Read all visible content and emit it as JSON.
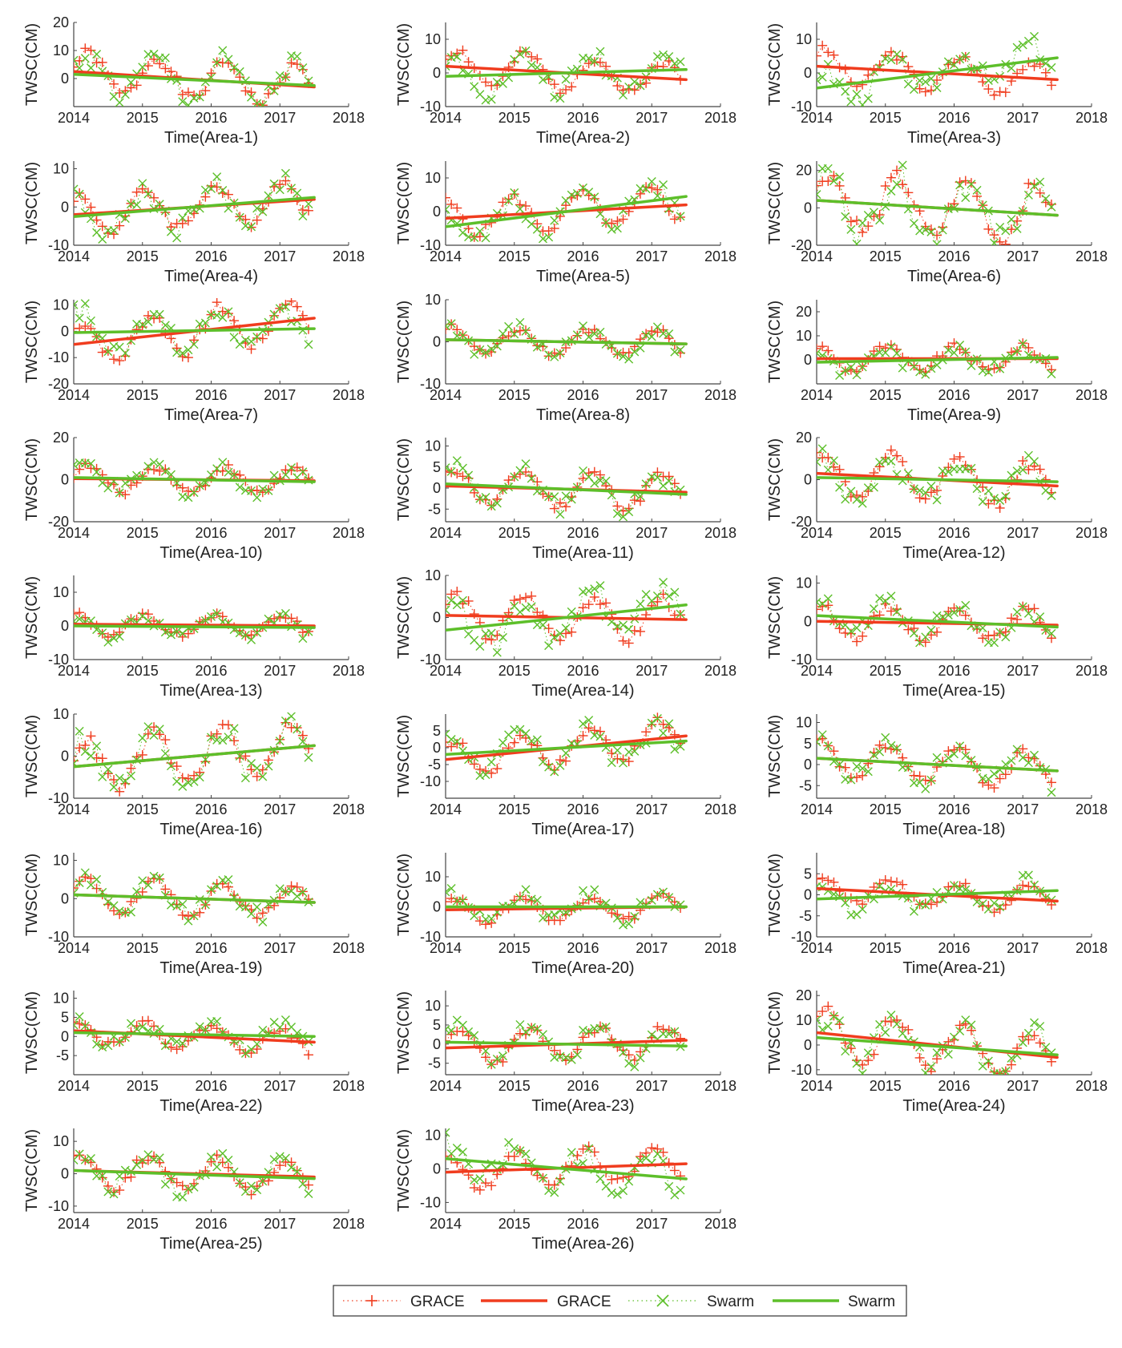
{
  "figure": {
    "ylabel": "TWSC(CM)",
    "xlabel_format": "Time(Area-{n})",
    "x_ticks": [
      2014,
      2015,
      2016,
      2017,
      2018
    ],
    "x_range": [
      2014,
      2018
    ],
    "colors": {
      "grace": "#f03c1e",
      "swarm": "#5dbf2a",
      "axis": "#444444"
    }
  },
  "legend": {
    "entries": [
      {
        "label": "GRACE",
        "series": "grace",
        "style": "markers-dotted"
      },
      {
        "label": "GRACE",
        "series": "grace",
        "style": "trend-line"
      },
      {
        "label": "Swarm",
        "series": "swarm",
        "style": "markers-dotted"
      },
      {
        "label": "Swarm",
        "series": "swarm",
        "style": "trend-line"
      }
    ]
  },
  "chart_data": [
    {
      "type": "line",
      "area": 1,
      "xlabel": "Time(Area-1)",
      "ylabel": "TWSC(CM)",
      "ylim": [
        -10,
        20
      ],
      "yticks": [
        0,
        10,
        20
      ],
      "grace_trend": [
        2.5,
        -3.0
      ],
      "swarm_trend": [
        1.5,
        -2.5
      ],
      "amp": 7,
      "phase": 0.2
    },
    {
      "type": "line",
      "area": 2,
      "xlabel": "Time(Area-2)",
      "ylabel": "TWSC(CM)",
      "ylim": [
        -10,
        15
      ],
      "yticks": [
        -10,
        0,
        10
      ],
      "grace_trend": [
        2.0,
        -2.0
      ],
      "swarm_trend": [
        -1.0,
        1.0
      ],
      "amp": 5,
      "phase": 0.5
    },
    {
      "type": "line",
      "area": 3,
      "xlabel": "Time(Area-3)",
      "ylabel": "TWSC(CM)",
      "ylim": [
        -10,
        15
      ],
      "yticks": [
        -10,
        0,
        10
      ],
      "grace_trend": [
        2.0,
        -2.0
      ],
      "swarm_trend": [
        -4.5,
        4.5
      ],
      "amp": 5,
      "phase": 0.9
    },
    {
      "type": "line",
      "area": 4,
      "xlabel": "Time(Area-4)",
      "ylabel": "TWSC(CM)",
      "ylim": [
        -10,
        12
      ],
      "yticks": [
        -10,
        0,
        10
      ],
      "grace_trend": [
        -2.0,
        2.0
      ],
      "swarm_trend": [
        -2.5,
        2.5
      ],
      "amp": 5,
      "phase": 1.3
    },
    {
      "type": "line",
      "area": 5,
      "xlabel": "Time(Area-5)",
      "ylabel": "TWSC(CM)",
      "ylim": [
        -10,
        15
      ],
      "yticks": [
        -10,
        0,
        10
      ],
      "grace_trend": [
        -2.0,
        2.0
      ],
      "swarm_trend": [
        -4.5,
        4.5
      ],
      "amp": 5,
      "phase": 1.7
    },
    {
      "type": "line",
      "area": 6,
      "xlabel": "Time(Area-6)",
      "ylabel": "TWSC(CM)",
      "ylim": [
        -20,
        25
      ],
      "yticks": [
        -20,
        0,
        20
      ],
      "grace_trend": [
        4.0,
        -4.0
      ],
      "swarm_trend": [
        4.0,
        -4.0
      ],
      "amp": 15,
      "phase": 0.4
    },
    {
      "type": "line",
      "area": 7,
      "xlabel": "Time(Area-7)",
      "ylabel": "TWSC(CM)",
      "ylim": [
        -20,
        12
      ],
      "yticks": [
        -20,
        -10,
        0,
        10
      ],
      "grace_trend": [
        -5.0,
        5.0
      ],
      "swarm_trend": [
        -0.5,
        1.0
      ],
      "amp": 8,
      "phase": 0.8
    },
    {
      "type": "line",
      "area": 8,
      "xlabel": "Time(Area-8)",
      "ylabel": "TWSC(CM)",
      "ylim": [
        -10,
        10
      ],
      "yticks": [
        -10,
        0,
        10
      ],
      "grace_trend": [
        0.5,
        -0.5
      ],
      "swarm_trend": [
        0.5,
        -0.5
      ],
      "amp": 3,
      "phase": 1.1
    },
    {
      "type": "line",
      "area": 9,
      "xlabel": "Time(Area-9)",
      "ylabel": "TWSC(CM)",
      "ylim": [
        -10,
        25
      ],
      "yticks": [
        0,
        10,
        20
      ],
      "grace_trend": [
        0.5,
        0.5
      ],
      "swarm_trend": [
        -1.0,
        1.0
      ],
      "amp": 5,
      "phase": 1.5
    },
    {
      "type": "line",
      "area": 10,
      "xlabel": "Time(Area-10)",
      "ylabel": "TWSC(CM)",
      "ylim": [
        -20,
        20
      ],
      "yticks": [
        -20,
        0,
        20
      ],
      "grace_trend": [
        0.5,
        -0.5
      ],
      "swarm_trend": [
        1.0,
        -1.0
      ],
      "amp": 6,
      "phase": 0.3
    },
    {
      "type": "line",
      "area": 11,
      "xlabel": "Time(Area-11)",
      "ylabel": "TWSC(CM)",
      "ylim": [
        -8,
        12
      ],
      "yticks": [
        -5,
        0,
        5,
        10
      ],
      "grace_trend": [
        0.5,
        -1.0
      ],
      "swarm_trend": [
        1.0,
        -1.5
      ],
      "amp": 4,
      "phase": 0.7
    },
    {
      "type": "line",
      "area": 12,
      "xlabel": "Time(Area-12)",
      "ylabel": "TWSC(CM)",
      "ylim": [
        -20,
        20
      ],
      "yticks": [
        -20,
        0,
        20
      ],
      "grace_trend": [
        3.0,
        -3.0
      ],
      "swarm_trend": [
        1.0,
        -1.0
      ],
      "amp": 10,
      "phase": 1.0
    },
    {
      "type": "line",
      "area": 13,
      "xlabel": "Time(Area-13)",
      "ylabel": "TWSC(CM)",
      "ylim": [
        -10,
        15
      ],
      "yticks": [
        -10,
        0,
        10
      ],
      "grace_trend": [
        0.5,
        0.0
      ],
      "swarm_trend": [
        0.0,
        -0.5
      ],
      "amp": 3,
      "phase": 1.4
    },
    {
      "type": "line",
      "area": 14,
      "xlabel": "Time(Area-14)",
      "ylabel": "TWSC(CM)",
      "ylim": [
        -10,
        10
      ],
      "yticks": [
        -10,
        0,
        10
      ],
      "grace_trend": [
        0.5,
        -0.5
      ],
      "swarm_trend": [
        -3.0,
        3.0
      ],
      "amp": 5,
      "phase": 0.6
    },
    {
      "type": "line",
      "area": 15,
      "xlabel": "Time(Area-15)",
      "ylabel": "TWSC(CM)",
      "ylim": [
        -10,
        12
      ],
      "yticks": [
        -10,
        0,
        10
      ],
      "grace_trend": [
        0.0,
        -1.0
      ],
      "swarm_trend": [
        1.5,
        -1.5
      ],
      "amp": 4,
      "phase": 1.2
    },
    {
      "type": "line",
      "area": 16,
      "xlabel": "Time(Area-16)",
      "ylabel": "TWSC(CM)",
      "ylim": [
        -10,
        10
      ],
      "yticks": [
        -10,
        0,
        10
      ],
      "grace_trend": [
        -2.5,
        2.5
      ],
      "swarm_trend": [
        -2.5,
        2.5
      ],
      "amp": 6,
      "phase": 0.5
    },
    {
      "type": "line",
      "area": 17,
      "xlabel": "Time(Area-17)",
      "ylabel": "TWSC(CM)",
      "ylim": [
        -15,
        10
      ],
      "yticks": [
        -10,
        -5,
        0,
        5
      ],
      "grace_trend": [
        -3.5,
        3.5
      ],
      "swarm_trend": [
        -2.0,
        2.0
      ],
      "amp": 5,
      "phase": 0.9
    },
    {
      "type": "line",
      "area": 18,
      "xlabel": "Time(Area-18)",
      "ylabel": "TWSC(CM)",
      "ylim": [
        -8,
        12
      ],
      "yticks": [
        -5,
        0,
        5,
        10
      ],
      "grace_trend": [
        1.5,
        -1.5
      ],
      "swarm_trend": [
        1.5,
        -1.5
      ],
      "amp": 4,
      "phase": 1.3
    },
    {
      "type": "line",
      "area": 19,
      "xlabel": "Time(Area-19)",
      "ylabel": "TWSC(CM)",
      "ylim": [
        -10,
        12
      ],
      "yticks": [
        -10,
        0,
        10
      ],
      "grace_trend": [
        1.0,
        -1.0
      ],
      "swarm_trend": [
        1.0,
        -1.0
      ],
      "amp": 4,
      "phase": 0.4
    },
    {
      "type": "line",
      "area": 20,
      "xlabel": "Time(Area-20)",
      "ylabel": "TWSC(CM)",
      "ylim": [
        -10,
        18
      ],
      "yticks": [
        -10,
        0,
        10
      ],
      "grace_trend": [
        -1.0,
        0.0
      ],
      "swarm_trend": [
        0.0,
        0.0
      ],
      "amp": 4,
      "phase": 0.8
    },
    {
      "type": "line",
      "area": 21,
      "xlabel": "Time(Area-21)",
      "ylabel": "TWSC(CM)",
      "ylim": [
        -10,
        10
      ],
      "yticks": [
        -10,
        -5,
        0,
        5
      ],
      "grace_trend": [
        1.5,
        -1.5
      ],
      "swarm_trend": [
        -1.0,
        1.0
      ],
      "amp": 3,
      "phase": 1.1
    },
    {
      "type": "line",
      "area": 22,
      "xlabel": "Time(Area-22)",
      "ylabel": "TWSC(CM)",
      "ylim": [
        -10,
        12
      ],
      "yticks": [
        -5,
        0,
        5,
        10
      ],
      "grace_trend": [
        1.5,
        -1.5
      ],
      "swarm_trend": [
        1.0,
        0.0
      ],
      "amp": 3,
      "phase": 1.5
    },
    {
      "type": "line",
      "area": 23,
      "xlabel": "Time(Area-23)",
      "ylabel": "TWSC(CM)",
      "ylim": [
        -8,
        14
      ],
      "yticks": [
        -5,
        0,
        5,
        10
      ],
      "grace_trend": [
        -1.0,
        1.0
      ],
      "swarm_trend": [
        0.5,
        -0.5
      ],
      "amp": 4,
      "phase": 0.2
    },
    {
      "type": "line",
      "area": 24,
      "xlabel": "Time(Area-24)",
      "ylabel": "TWSC(CM)",
      "ylim": [
        -12,
        22
      ],
      "yticks": [
        -10,
        0,
        10,
        20
      ],
      "grace_trend": [
        5.0,
        -5.0
      ],
      "swarm_trend": [
        3.0,
        -4.0
      ],
      "amp": 9,
      "phase": 0.6
    },
    {
      "type": "line",
      "area": 25,
      "xlabel": "Time(Area-25)",
      "ylabel": "TWSC(CM)",
      "ylim": [
        -12,
        14
      ],
      "yticks": [
        -10,
        0,
        10
      ],
      "grace_trend": [
        1.0,
        -1.0
      ],
      "swarm_trend": [
        1.0,
        -1.5
      ],
      "amp": 5,
      "phase": 1.0
    },
    {
      "type": "line",
      "area": 26,
      "xlabel": "Time(Area-26)",
      "ylabel": "TWSC(CM)",
      "ylim": [
        -13,
        12
      ],
      "yticks": [
        -10,
        0,
        10
      ],
      "grace_trend": [
        -1.0,
        1.5
      ],
      "swarm_trend": [
        3.0,
        -3.0
      ],
      "amp": 5,
      "phase": 1.4
    }
  ]
}
